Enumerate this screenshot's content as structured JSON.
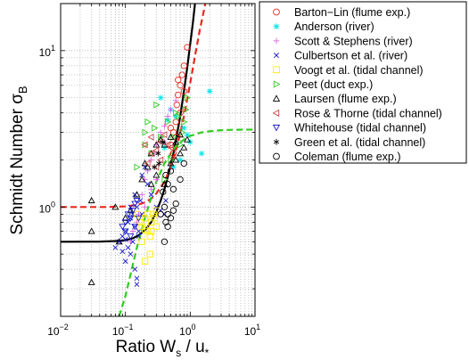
{
  "chart_data": {
    "type": "scatter",
    "title": "",
    "xlabel": {
      "main": "Ratio W",
      "sub": "s",
      "tail": " / u",
      "sub2": "*"
    },
    "ylabel": {
      "main": "Schmidt Number σ",
      "sub": "B"
    },
    "xscale": "log",
    "yscale": "log",
    "xlim": [
      0.01,
      10
    ],
    "ylim": [
      0.2,
      20
    ],
    "grid": true,
    "legend_position": "outside-right",
    "x_ticks": [
      {
        "value": 0.01,
        "base": "10",
        "exp": "−2"
      },
      {
        "value": 0.1,
        "base": "10",
        "exp": "−1"
      },
      {
        "value": 1,
        "base": "10",
        "exp": "0"
      },
      {
        "value": 10,
        "base": "10",
        "exp": "1"
      }
    ],
    "y_ticks": [
      {
        "value": 1,
        "base": "10",
        "exp": "0"
      },
      {
        "value": 10,
        "base": "10",
        "exp": "1"
      }
    ],
    "series": [
      {
        "name": "Barton−Lin (flume exp.)",
        "marker": "circle",
        "color": "#e8281e",
        "points": [
          [
            0.5,
            2.5
          ],
          [
            0.55,
            3.0
          ],
          [
            0.6,
            3.5
          ],
          [
            0.62,
            4.5
          ],
          [
            0.65,
            5.2
          ],
          [
            0.7,
            6.0
          ],
          [
            0.75,
            7.0
          ],
          [
            0.8,
            8.0
          ],
          [
            0.9,
            10.5
          ],
          [
            0.8,
            5.5
          ],
          [
            0.7,
            4.0
          ],
          [
            0.6,
            2.8
          ],
          [
            0.55,
            2.2
          ],
          [
            0.5,
            3.2
          ],
          [
            0.65,
            6.5
          ]
        ]
      },
      {
        "name": "Anderson (river)",
        "marker": "star",
        "color": "#00e5e5",
        "points": [
          [
            0.35,
            5.0
          ],
          [
            0.5,
            4.2
          ],
          [
            0.6,
            3.8
          ],
          [
            0.8,
            3.2
          ],
          [
            0.9,
            2.9
          ],
          [
            1.0,
            2.6
          ],
          [
            1.5,
            2.2
          ],
          [
            2.0,
            5.5
          ],
          [
            0.45,
            3.6
          ],
          [
            0.7,
            2.0
          ],
          [
            0.55,
            1.8
          ],
          [
            0.4,
            2.4
          ]
        ]
      },
      {
        "name": "Scott & Stephens (river)",
        "marker": "plus",
        "color": "#e060e0",
        "points": [
          [
            0.12,
            0.6
          ],
          [
            0.13,
            0.7
          ],
          [
            0.15,
            0.8
          ],
          [
            0.16,
            0.9
          ],
          [
            0.18,
            1.2
          ],
          [
            0.2,
            1.5
          ],
          [
            0.22,
            1.7
          ],
          [
            0.25,
            2.0
          ],
          [
            0.28,
            2.2
          ],
          [
            0.3,
            2.5
          ],
          [
            0.35,
            3.0
          ],
          [
            0.4,
            3.3
          ],
          [
            0.45,
            3.8
          ],
          [
            0.5,
            4.2
          ],
          [
            0.6,
            4.8
          ],
          [
            0.3,
            1.5
          ],
          [
            0.25,
            1.3
          ],
          [
            0.2,
            1.0
          ],
          [
            0.35,
            2.8
          ],
          [
            0.4,
            2.6
          ]
        ]
      },
      {
        "name": "Culbertson et al. (river)",
        "marker": "x",
        "color": "#1a1acc",
        "points": [
          [
            0.07,
            0.55
          ],
          [
            0.08,
            0.6
          ],
          [
            0.09,
            0.65
          ],
          [
            0.1,
            0.7
          ],
          [
            0.1,
            0.45
          ],
          [
            0.11,
            0.8
          ],
          [
            0.11,
            0.55
          ],
          [
            0.12,
            0.5
          ],
          [
            0.12,
            0.85
          ],
          [
            0.13,
            0.9
          ],
          [
            0.13,
            0.6
          ],
          [
            0.14,
            0.75
          ],
          [
            0.14,
            0.4
          ],
          [
            0.15,
            0.35
          ],
          [
            0.15,
            1.0
          ],
          [
            0.16,
            0.7
          ],
          [
            0.16,
            0.65
          ],
          [
            0.17,
            1.1
          ],
          [
            0.18,
            0.9
          ],
          [
            0.12,
            1.0
          ],
          [
            0.14,
            1.2
          ],
          [
            0.15,
            0.32
          ],
          [
            0.18,
            1.6
          ],
          [
            0.2,
            1.8
          ],
          [
            0.22,
            1.4
          ],
          [
            0.25,
            1.2
          ],
          [
            0.3,
            1.0
          ],
          [
            0.35,
            0.95
          ],
          [
            0.4,
            0.9
          ],
          [
            0.42,
            1.1
          ],
          [
            0.1,
            0.62
          ],
          [
            0.09,
            0.52
          ]
        ]
      },
      {
        "name": "Voogt et al. (tidal channel)",
        "marker": "square",
        "color": "#ffeb00",
        "points": [
          [
            0.15,
            0.9
          ],
          [
            0.17,
            0.8
          ],
          [
            0.18,
            0.75
          ],
          [
            0.2,
            0.72
          ],
          [
            0.22,
            0.7
          ],
          [
            0.24,
            0.65
          ],
          [
            0.25,
            0.8
          ],
          [
            0.27,
            0.9
          ],
          [
            0.28,
            0.85
          ],
          [
            0.3,
            0.95
          ],
          [
            0.22,
            0.9
          ],
          [
            0.2,
            0.85
          ],
          [
            0.18,
            0.6
          ],
          [
            0.25,
            0.7
          ],
          [
            0.3,
            0.75
          ],
          [
            0.2,
            0.45
          ],
          [
            0.24,
            0.5
          ]
        ]
      },
      {
        "name": "Peet (duct exp.)",
        "marker": "triangle-right",
        "color": "#2ecc1e",
        "points": [
          [
            0.15,
            1.8
          ],
          [
            0.2,
            2.5
          ],
          [
            0.22,
            3.5
          ],
          [
            0.25,
            2.2
          ],
          [
            0.3,
            4.5
          ],
          [
            0.35,
            2.8
          ],
          [
            0.4,
            1.5
          ],
          [
            0.45,
            3.5
          ],
          [
            0.5,
            2.0
          ],
          [
            0.55,
            2.8
          ],
          [
            0.6,
            4.0
          ],
          [
            0.65,
            3.8
          ],
          [
            0.7,
            2.5
          ],
          [
            0.75,
            3.0
          ],
          [
            0.8,
            3.5
          ],
          [
            0.85,
            4.2
          ],
          [
            0.9,
            5.0
          ],
          [
            0.2,
            3.0
          ],
          [
            0.28,
            3.2
          ]
        ]
      },
      {
        "name": "Laursen (flume exp.)",
        "marker": "triangle-up",
        "color": "#000000",
        "points": [
          [
            0.03,
            1.1
          ],
          [
            0.03,
            0.7
          ],
          [
            0.03,
            0.33
          ],
          [
            0.07,
            1.0
          ],
          [
            0.08,
            0.6
          ],
          [
            0.1,
            0.85
          ],
          [
            0.12,
            0.95
          ],
          [
            0.15,
            1.2
          ],
          [
            0.18,
            1.5
          ],
          [
            0.2,
            1.9
          ],
          [
            0.22,
            1.8
          ],
          [
            0.25,
            2.2
          ],
          [
            0.3,
            2.5
          ],
          [
            0.35,
            2.7
          ],
          [
            0.4,
            2.5
          ],
          [
            0.5,
            2.8
          ],
          [
            0.6,
            2.6
          ],
          [
            0.7,
            2.9
          ],
          [
            0.8,
            2.4
          ],
          [
            0.9,
            2.7
          ],
          [
            0.25,
            1.4
          ],
          [
            0.3,
            1.6
          ],
          [
            0.5,
            1.9
          ],
          [
            0.6,
            2.0
          ],
          [
            0.7,
            2.2
          ],
          [
            0.4,
            1.4
          ]
        ]
      },
      {
        "name": "Rose & Thorne (tidal channel)",
        "marker": "triangle-left",
        "color": "#cc4444",
        "points": [
          [
            0.2,
            2.5
          ],
          [
            0.25,
            2.8
          ],
          [
            0.3,
            2.3
          ],
          [
            0.35,
            2.6
          ],
          [
            0.4,
            2.9
          ],
          [
            0.45,
            2.5
          ],
          [
            0.5,
            2.4
          ],
          [
            0.25,
            2.2
          ],
          [
            0.35,
            2.0
          ],
          [
            0.3,
            1.8
          ],
          [
            0.22,
            1.9
          ]
        ]
      },
      {
        "name": "Whitehouse (tidal channel)",
        "marker": "triangle-down",
        "color": "#1a1acc",
        "points": [
          [
            0.09,
            0.75
          ],
          [
            0.1,
            0.8
          ],
          [
            0.11,
            0.9
          ],
          [
            0.12,
            0.85
          ],
          [
            0.13,
            0.95
          ],
          [
            0.14,
            1.05
          ],
          [
            0.15,
            1.1
          ],
          [
            0.12,
            0.65
          ],
          [
            0.1,
            0.7
          ],
          [
            0.16,
            0.85
          ],
          [
            0.14,
            0.75
          ]
        ]
      },
      {
        "name": "Green et al. (tidal channel)",
        "marker": "asterisk",
        "color": "#000000",
        "points": [
          [
            0.28,
            1.8
          ],
          [
            0.32,
            2.2
          ],
          [
            0.38,
            2.6
          ],
          [
            0.33,
            1.9
          ]
        ]
      },
      {
        "name": "Coleman (flume exp.)",
        "marker": "circle",
        "color": "#000000",
        "points": [
          [
            0.4,
            1.0
          ],
          [
            0.42,
            0.8
          ],
          [
            0.45,
            0.9
          ],
          [
            0.45,
            0.75
          ],
          [
            0.5,
            0.85
          ],
          [
            0.55,
            0.95
          ],
          [
            0.6,
            1.05
          ],
          [
            0.4,
            0.6
          ],
          [
            0.45,
            1.4
          ],
          [
            0.5,
            1.7
          ],
          [
            0.55,
            1.3
          ],
          [
            0.7,
            1.5
          ],
          [
            0.8,
            1.9
          ],
          [
            0.35,
            0.9
          ],
          [
            0.38,
            1.25
          ],
          [
            0.42,
            1.6
          ]
        ]
      }
    ],
    "curves": [
      {
        "style": "solid",
        "color": "#000000",
        "points": [
          [
            0.01,
            0.6
          ],
          [
            0.04,
            0.601
          ],
          [
            0.08,
            0.607
          ],
          [
            0.1,
            0.614
          ],
          [
            0.13,
            0.63
          ],
          [
            0.16,
            0.66
          ],
          [
            0.2,
            0.71
          ],
          [
            0.25,
            0.8
          ],
          [
            0.3,
            0.93
          ],
          [
            0.35,
            1.1
          ],
          [
            0.4,
            1.3
          ],
          [
            0.45,
            1.55
          ],
          [
            0.5,
            1.85
          ],
          [
            0.55,
            2.2
          ],
          [
            0.6,
            2.65
          ],
          [
            0.7,
            3.8
          ],
          [
            0.8,
            5.5
          ],
          [
            0.9,
            7.8
          ],
          [
            1.0,
            11.0
          ],
          [
            1.1,
            15.0
          ],
          [
            1.2,
            21.0
          ]
        ]
      },
      {
        "style": "dashed",
        "color": "#e8281e",
        "points": [
          [
            0.01,
            1.0
          ],
          [
            0.05,
            1.0
          ],
          [
            0.1,
            1.01
          ],
          [
            0.15,
            1.03
          ],
          [
            0.2,
            1.07
          ],
          [
            0.25,
            1.13
          ],
          [
            0.3,
            1.22
          ],
          [
            0.4,
            1.45
          ],
          [
            0.5,
            1.8
          ],
          [
            0.6,
            2.3
          ],
          [
            0.7,
            2.95
          ],
          [
            0.8,
            3.8
          ],
          [
            0.9,
            4.9
          ],
          [
            1.0,
            6.2
          ],
          [
            1.2,
            9.5
          ],
          [
            1.4,
            13.5
          ],
          [
            1.6,
            17.5
          ],
          [
            1.75,
            21.0
          ]
        ]
      },
      {
        "style": "dashed",
        "color": "#2ecc1e",
        "points": [
          [
            0.08,
            0.2
          ],
          [
            0.1,
            0.27
          ],
          [
            0.12,
            0.37
          ],
          [
            0.15,
            0.55
          ],
          [
            0.2,
            0.85
          ],
          [
            0.25,
            1.15
          ],
          [
            0.3,
            1.45
          ],
          [
            0.4,
            1.9
          ],
          [
            0.5,
            2.2
          ],
          [
            0.6,
            2.45
          ],
          [
            0.8,
            2.7
          ],
          [
            1.0,
            2.85
          ],
          [
            1.5,
            3.0
          ],
          [
            2.0,
            3.05
          ],
          [
            3.0,
            3.1
          ],
          [
            5.0,
            3.12
          ],
          [
            10.0,
            3.13
          ]
        ]
      }
    ]
  }
}
